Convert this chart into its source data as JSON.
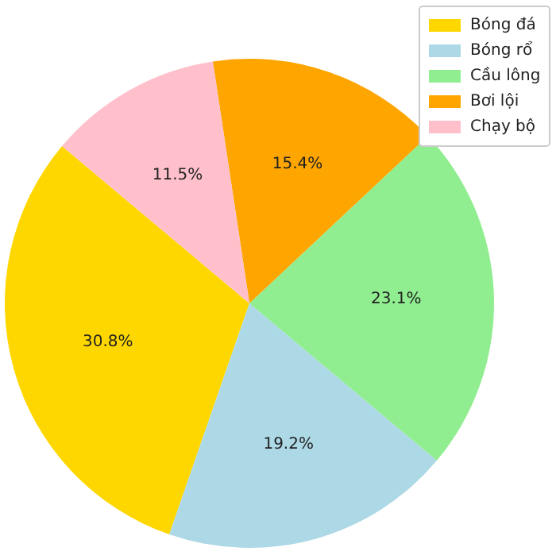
{
  "chart_data": {
    "type": "pie",
    "categories": [
      "Bóng đá",
      "Bóng rổ",
      "Cầu lông",
      "Bơi lội",
      "Chạy bộ"
    ],
    "values": [
      30.8,
      19.2,
      23.1,
      15.4,
      11.5
    ],
    "colors": [
      "#ffd700",
      "#add8e6",
      "#90ee90",
      "#ffa500",
      "#ffc0cb"
    ],
    "value_labels": [
      "30.8%",
      "19.2%",
      "23.1%",
      "15.4%",
      "11.5%"
    ],
    "legend": "top right"
  }
}
